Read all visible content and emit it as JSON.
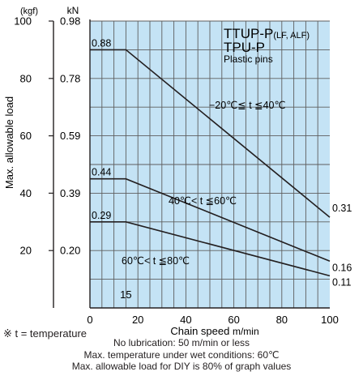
{
  "chart_data": {
    "type": "line",
    "title": "TTUP-P",
    "title_suffix": "(LF, ALF)",
    "title_line2": "TPU-P",
    "subtitle": "Plastic pins",
    "xlabel": "Chain speed",
    "xunit": "m/min",
    "ylabel": "Max. allowable load",
    "unit_kgf": "(kgf)",
    "unit_kn": "kN",
    "xlim": [
      0,
      100
    ],
    "ylim": [
      0,
      100
    ],
    "x_ticks": [
      "0",
      "20",
      "40",
      "60",
      "80",
      "100"
    ],
    "y_ticks_kgf": [
      "20",
      "40",
      "60",
      "80",
      "100"
    ],
    "y_ticks_kn": [
      "0.20",
      "0.39",
      "0.59",
      "0.78",
      "0.98"
    ],
    "knee_label": "15",
    "grid": true,
    "series": [
      {
        "name": "−20℃≦ t ≦40℃",
        "x": [
          0,
          15,
          100
        ],
        "y": [
          90,
          90,
          31.6
        ],
        "start_label": "0.88",
        "end_label": "0.31"
      },
      {
        "name": "40℃< t ≦60℃",
        "x": [
          0,
          15,
          100
        ],
        "y": [
          45,
          45,
          16.3
        ],
        "start_label": "0.44",
        "end_label": "0.16"
      },
      {
        "name": "60℃< t ≦80℃",
        "x": [
          0,
          15,
          100
        ],
        "y": [
          30,
          30,
          11.2
        ],
        "start_label": "0.29",
        "end_label": "0.11"
      }
    ],
    "colors": {
      "plot_fill": "#c4e3f5",
      "grid": "#5e5e5e",
      "line": "#231f20",
      "axis": "#231f20"
    }
  },
  "notes": {
    "temperature": "※ t = temperature",
    "lines": [
      "No lubrication: 50 m/min or less",
      "Max. temperature under wet conditions: 60℃",
      "Max. allowable load for DIY is 80% of graph values"
    ]
  }
}
